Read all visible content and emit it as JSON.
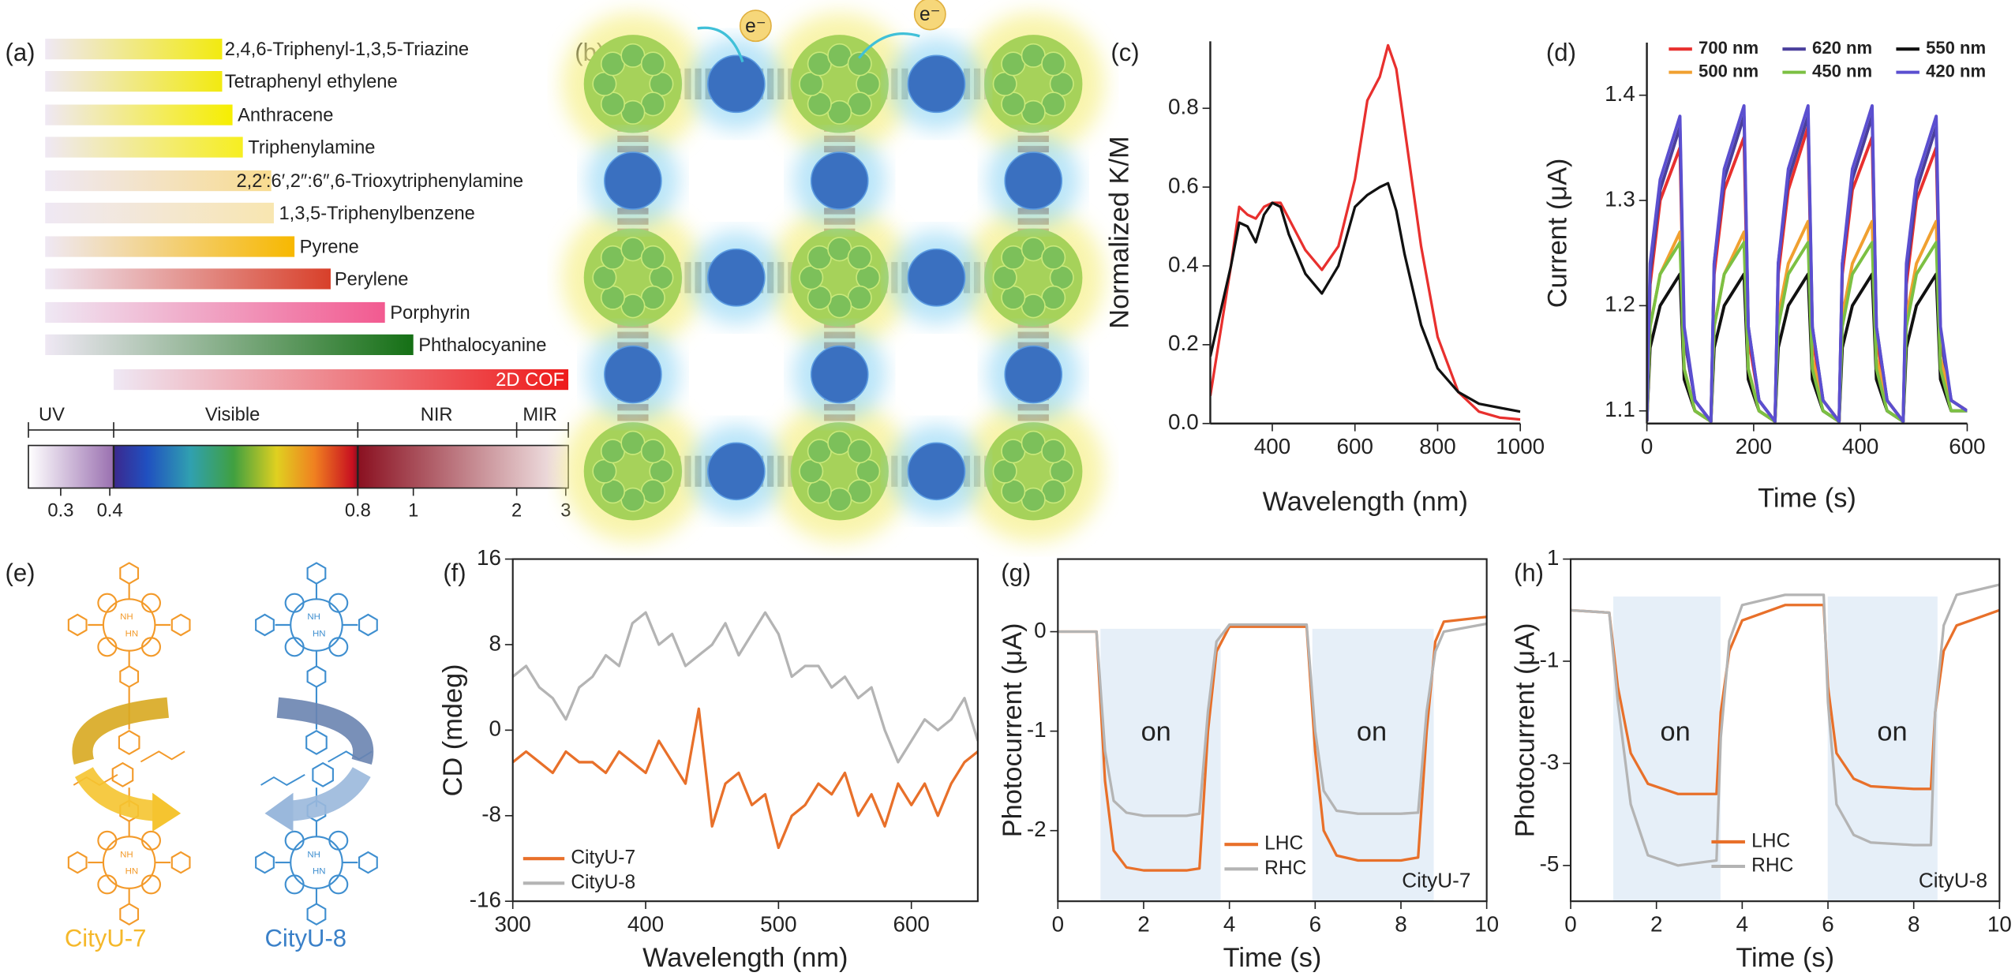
{
  "panel_a": {
    "label": "(a)",
    "compounds": [
      "2,4,6-Triphenyl-1,3,5-Triazine",
      "Tetraphenyl ethylene",
      "Anthracene",
      "Triphenylamine",
      "2,2′:6′,2″:6″,6-Trioxytriphenylamine",
      "1,3,5-Triphenylbenzene",
      "Pyrene",
      "Perylene",
      "Porphyrin",
      "Phthalocyanine",
      "2D COF"
    ],
    "regions": [
      "UV",
      "Visible",
      "NIR",
      "MIR"
    ],
    "scale_labels": [
      "0.3",
      "0.4",
      "0.8",
      "1",
      "2",
      "3"
    ]
  },
  "panel_b": {
    "label": "(b)",
    "electron_labels": [
      "e⁻",
      "e⁻"
    ]
  },
  "panel_e": {
    "label": "(e)",
    "structures": [
      "CityU-7",
      "CityU-8"
    ],
    "atom_labels": [
      "NH",
      "HN"
    ]
  },
  "chart_data": [
    {
      "type": "line",
      "label": "(c)",
      "xlabel": "Wavelength (nm)",
      "ylabel": "Normalized K/M",
      "x": [
        250,
        300,
        320,
        340,
        360,
        380,
        400,
        420,
        440,
        480,
        520,
        560,
        600,
        630,
        660,
        680,
        700,
        720,
        760,
        800,
        850,
        900,
        950,
        1000
      ],
      "series": [
        {
          "color": "#e8302e",
          "values": [
            0.07,
            0.4,
            0.55,
            0.53,
            0.52,
            0.55,
            0.56,
            0.56,
            0.52,
            0.44,
            0.39,
            0.45,
            0.62,
            0.82,
            0.88,
            0.96,
            0.9,
            0.75,
            0.45,
            0.22,
            0.08,
            0.03,
            0.015,
            0.01
          ]
        },
        {
          "color": "#111111",
          "values": [
            0.17,
            0.4,
            0.51,
            0.5,
            0.46,
            0.53,
            0.56,
            0.55,
            0.48,
            0.38,
            0.33,
            0.4,
            0.55,
            0.58,
            0.6,
            0.61,
            0.54,
            0.43,
            0.25,
            0.14,
            0.08,
            0.05,
            0.04,
            0.03
          ]
        }
      ],
      "xlim": [
        250,
        1000
      ],
      "ylim": [
        0,
        0.97
      ],
      "xticks": [
        400,
        600,
        800,
        1000
      ],
      "yticks": [
        {
          "value": 0,
          "label": "0.0"
        },
        0.2,
        0.4,
        0.6,
        0.8
      ]
    },
    {
      "type": "line",
      "label": "(d)",
      "xlabel": "Time (s)",
      "ylabel": "Current (μA)",
      "legend": "upper right",
      "x": [
        0,
        6,
        25,
        62,
        70,
        90,
        120,
        126,
        145,
        182,
        190,
        210,
        240,
        246,
        265,
        302,
        310,
        330,
        360,
        366,
        385,
        422,
        430,
        450,
        480,
        486,
        505,
        542,
        550,
        570,
        600
      ],
      "series": [
        {
          "name": "700 nm",
          "color": "#e8302e",
          "values": [
            1.09,
            1.22,
            1.3,
            1.35,
            1.17,
            1.11,
            1.09,
            1.23,
            1.31,
            1.36,
            1.17,
            1.11,
            1.09,
            1.23,
            1.31,
            1.37,
            1.17,
            1.11,
            1.09,
            1.23,
            1.31,
            1.36,
            1.17,
            1.11,
            1.09,
            1.22,
            1.3,
            1.35,
            1.17,
            1.11,
            1.1
          ]
        },
        {
          "name": "620 nm",
          "color": "#4a3f9c",
          "values": [
            1.09,
            1.23,
            1.31,
            1.37,
            1.17,
            1.11,
            1.09,
            1.24,
            1.32,
            1.38,
            1.18,
            1.11,
            1.09,
            1.24,
            1.32,
            1.38,
            1.18,
            1.11,
            1.09,
            1.24,
            1.32,
            1.38,
            1.18,
            1.11,
            1.09,
            1.23,
            1.31,
            1.37,
            1.17,
            1.11,
            1.1
          ]
        },
        {
          "name": "550 nm",
          "color": "#111111",
          "values": [
            1.09,
            1.16,
            1.2,
            1.23,
            1.13,
            1.1,
            1.09,
            1.16,
            1.2,
            1.23,
            1.13,
            1.1,
            1.09,
            1.16,
            1.2,
            1.23,
            1.13,
            1.1,
            1.09,
            1.16,
            1.2,
            1.23,
            1.13,
            1.1,
            1.09,
            1.16,
            1.2,
            1.23,
            1.13,
            1.1,
            1.1
          ]
        },
        {
          "name": "500 nm",
          "color": "#f0a030",
          "values": [
            1.09,
            1.18,
            1.23,
            1.27,
            1.14,
            1.1,
            1.09,
            1.18,
            1.23,
            1.27,
            1.14,
            1.1,
            1.09,
            1.19,
            1.24,
            1.28,
            1.15,
            1.11,
            1.09,
            1.19,
            1.24,
            1.28,
            1.15,
            1.11,
            1.09,
            1.19,
            1.24,
            1.28,
            1.15,
            1.11,
            1.1
          ]
        },
        {
          "name": "450 nm",
          "color": "#7cc043",
          "values": [
            1.09,
            1.18,
            1.23,
            1.26,
            1.14,
            1.1,
            1.09,
            1.18,
            1.23,
            1.26,
            1.14,
            1.1,
            1.09,
            1.18,
            1.23,
            1.26,
            1.14,
            1.1,
            1.09,
            1.18,
            1.23,
            1.26,
            1.14,
            1.1,
            1.09,
            1.18,
            1.23,
            1.26,
            1.14,
            1.1,
            1.1
          ]
        },
        {
          "name": "420 nm",
          "color": "#5b4fd0",
          "values": [
            1.09,
            1.24,
            1.32,
            1.38,
            1.18,
            1.11,
            1.09,
            1.24,
            1.33,
            1.39,
            1.18,
            1.11,
            1.09,
            1.24,
            1.33,
            1.39,
            1.18,
            1.11,
            1.09,
            1.24,
            1.33,
            1.39,
            1.18,
            1.11,
            1.09,
            1.24,
            1.32,
            1.38,
            1.18,
            1.11,
            1.1
          ]
        }
      ],
      "xlim": [
        0,
        600
      ],
      "ylim": [
        1.088,
        1.45
      ],
      "xticks": [
        0,
        200,
        400,
        600
      ],
      "yticks": [
        1.1,
        1.2,
        1.3,
        1.4
      ]
    },
    {
      "type": "line",
      "label": "(f)",
      "xlabel": "Wavelength (nm)",
      "ylabel": "CD (mdeg)",
      "legend": "lower left",
      "x": [
        300,
        310,
        320,
        330,
        340,
        350,
        360,
        370,
        380,
        390,
        400,
        410,
        420,
        430,
        440,
        450,
        460,
        470,
        480,
        490,
        500,
        510,
        520,
        530,
        540,
        550,
        560,
        570,
        580,
        590,
        600,
        610,
        620,
        630,
        640,
        650
      ],
      "series": [
        {
          "name": "CityU-7",
          "color": "#e8702a",
          "values": [
            -3,
            -2,
            -3,
            -4,
            -2,
            -3,
            -3,
            -4,
            -2,
            -3,
            -4,
            -1,
            -3,
            -5,
            2,
            -9,
            -5,
            -4,
            -7,
            -6,
            -11,
            -8,
            -7,
            -5,
            -6,
            -4,
            -8,
            -6,
            -9,
            -5,
            -7,
            -5,
            -8,
            -5,
            -3,
            -2
          ]
        },
        {
          "name": "CityU-8",
          "color": "#b4b4b4",
          "values": [
            5,
            6,
            4,
            3,
            1,
            4,
            5,
            7,
            6,
            10,
            11,
            8,
            9,
            6,
            7,
            8,
            10,
            7,
            9,
            11,
            9,
            5,
            6,
            6,
            4,
            5,
            3,
            4,
            0,
            -3,
            -1,
            1,
            0,
            1,
            3,
            -1
          ]
        }
      ],
      "xlim": [
        300,
        650
      ],
      "ylim": [
        -16,
        16
      ],
      "xticks": [
        300,
        400,
        500,
        600
      ],
      "yticks": [
        -16,
        -8,
        0,
        8,
        16
      ]
    },
    {
      "type": "line",
      "label": "(g)",
      "xlabel": "Time (s)",
      "ylabel": "Photocurrent (μA)",
      "legend": "lower right",
      "annotations": [
        "on",
        "on",
        "CityU-7"
      ],
      "x": [
        0,
        0.9,
        1.1,
        1.3,
        1.6,
        2,
        3,
        3.3,
        3.5,
        3.7,
        4,
        5,
        5.8,
        6,
        6.2,
        6.5,
        7,
        8,
        8.4,
        8.6,
        8.8,
        9,
        10
      ],
      "series": [
        {
          "name": "LHC",
          "color": "#e8702a",
          "values": [
            0,
            0,
            -1.5,
            -2.2,
            -2.37,
            -2.4,
            -2.4,
            -2.38,
            -1,
            -0.2,
            0.05,
            0.05,
            0.05,
            -1.2,
            -2.0,
            -2.25,
            -2.3,
            -2.3,
            -2.27,
            -1,
            -0.1,
            0.1,
            0.15
          ]
        },
        {
          "name": "RHC",
          "color": "#b4b4b4",
          "values": [
            0,
            0,
            -1.2,
            -1.7,
            -1.82,
            -1.85,
            -1.85,
            -1.83,
            -0.8,
            -0.1,
            0.07,
            0.07,
            0.07,
            -1.0,
            -1.6,
            -1.8,
            -1.83,
            -1.83,
            -1.82,
            -0.8,
            -0.2,
            0.0,
            0.08
          ]
        }
      ],
      "xlim": [
        0,
        10
      ],
      "ylim": [
        -2.71,
        0.73
      ],
      "xticks": [
        0,
        2,
        4,
        6,
        8,
        10
      ],
      "yticks": [
        0,
        -1,
        -2
      ]
    },
    {
      "type": "line",
      "label": "(h)",
      "xlabel": "Time (s)",
      "ylabel": "Photocurrent (μA)",
      "legend": "lower right",
      "annotations": [
        "on",
        "on",
        "CityU-8"
      ],
      "x": [
        0,
        0.9,
        1.1,
        1.4,
        1.8,
        2.5,
        3.4,
        3.5,
        3.7,
        4,
        5,
        5.9,
        6,
        6.2,
        6.6,
        7,
        8,
        8.4,
        8.5,
        8.7,
        9,
        10
      ],
      "series": [
        {
          "name": "LHC",
          "color": "#e8702a",
          "values": [
            0,
            -0.05,
            -1.5,
            -2.8,
            -3.4,
            -3.6,
            -3.6,
            -2,
            -0.8,
            -0.2,
            0.1,
            0.1,
            -1.5,
            -2.8,
            -3.3,
            -3.45,
            -3.5,
            -3.5,
            -2,
            -0.8,
            -0.3,
            0
          ]
        },
        {
          "name": "RHC",
          "color": "#b4b4b4",
          "values": [
            0,
            -0.05,
            -1.8,
            -3.8,
            -4.8,
            -5.0,
            -4.9,
            -2.5,
            -0.6,
            0.1,
            0.3,
            0.3,
            -1.8,
            -3.8,
            -4.4,
            -4.55,
            -4.6,
            -4.6,
            -2,
            -0.3,
            0.3,
            0.5
          ]
        }
      ],
      "xlim": [
        0,
        10
      ],
      "ylim": [
        -5.7,
        1
      ],
      "xticks": [
        0,
        2,
        4,
        6,
        8,
        10
      ],
      "yticks": [
        1,
        -1,
        -3,
        -5
      ]
    }
  ]
}
